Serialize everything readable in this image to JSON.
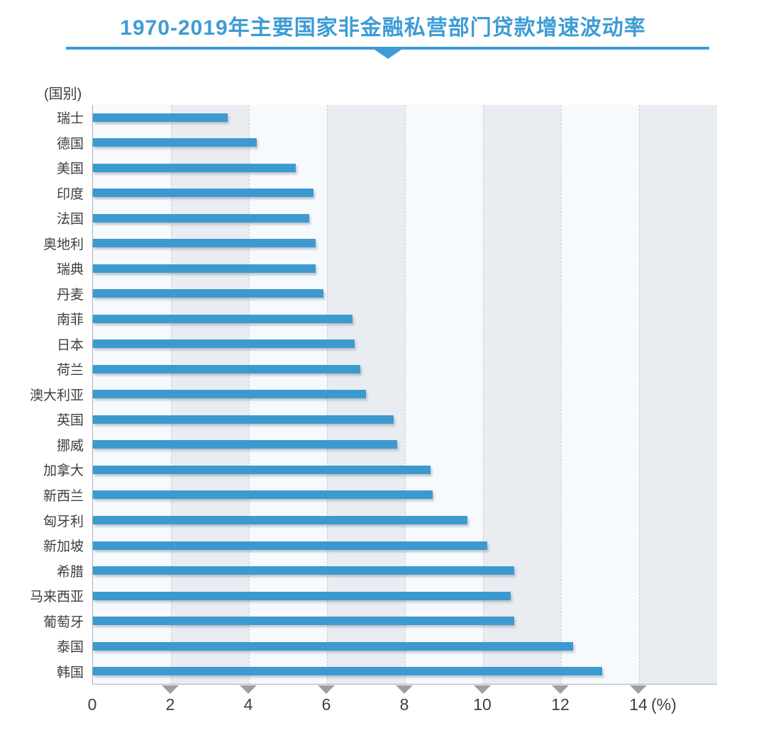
{
  "header": {
    "title": "1970-2019年主要国家非金融私营部门贷款增速波动率"
  },
  "theme": {
    "title_blue": "#3D9CD4",
    "bar_blue": "#3D9AD1",
    "band_light": "#F7FAFD",
    "band_gray": "#E9EDF1",
    "axis_gray": "#A9ADB2",
    "grid_dash": "#C8CED4",
    "marker_gray": "#9AA0A6",
    "text_dark": "#3C4043"
  },
  "chart_data": {
    "type": "bar",
    "orientation": "horizontal",
    "title": "1970-2019年主要国家非金融私营部门贷款增速波动率",
    "ylabel": "(国别)",
    "xlabel": "(%)",
    "categories": [
      "瑞士",
      "德国",
      "美国",
      "印度",
      "法国",
      "奥地利",
      "瑞典",
      "丹麦",
      "南菲",
      "日本",
      "荷兰",
      "澳大利亚",
      "英国",
      "挪威",
      "加拿大",
      "新西兰",
      "匈牙利",
      "新加坡",
      "希腊",
      "马来西亚",
      "葡萄牙",
      "泰国",
      "韩国"
    ],
    "values": [
      3.45,
      4.2,
      5.2,
      5.65,
      5.55,
      5.7,
      5.7,
      5.9,
      6.65,
      6.7,
      6.85,
      7.0,
      7.7,
      7.8,
      8.65,
      8.7,
      9.6,
      10.1,
      10.8,
      10.7,
      10.8,
      12.3,
      13.05
    ],
    "xlim": [
      0,
      16
    ],
    "x_ticks": [
      0,
      2,
      4,
      6,
      8,
      10,
      12,
      14
    ],
    "band_step": 2,
    "grid": "dashed-vertical",
    "legend": "none"
  }
}
